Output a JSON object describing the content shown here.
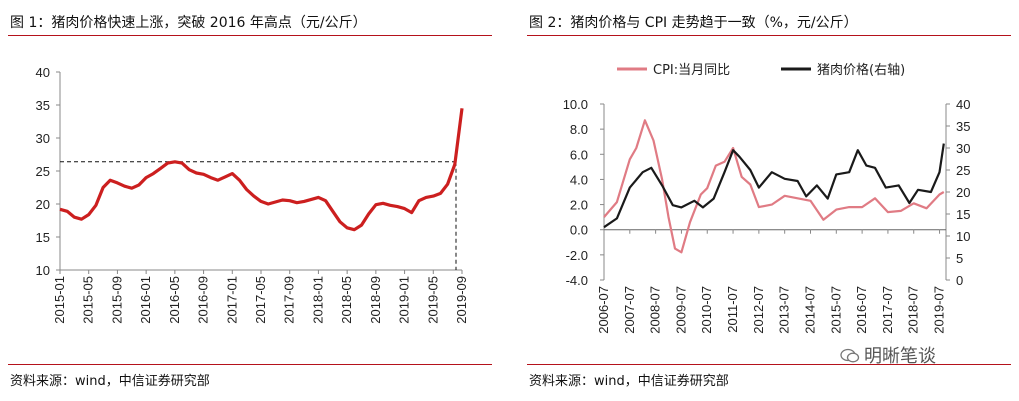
{
  "left": {
    "title": "图 1：猪肉价格快速上涨，突破 2016 年高点（元/公斤）",
    "source": "资料来源：wind，中信证券研究部"
  },
  "right": {
    "title": "图 2：猪肉价格与 CPI 走势趋于一致（%，元/公斤）",
    "source": "资料来源：wind，中信证券研究部"
  },
  "watermark": "明晰笔谈",
  "colors": {
    "rule": "#b5121b",
    "pork_red": "#cc1f1f",
    "cpi_pink": "#e07b84",
    "pork_black": "#1a1a1a"
  },
  "chart_data": [
    {
      "type": "line",
      "title": "图 1：猪肉价格快速上涨，突破 2016 年高点（元/公斤）",
      "ylim": [
        10,
        40
      ],
      "yticks": [
        "40",
        "35",
        "30",
        "25",
        "20",
        "15",
        "10"
      ],
      "xticks": [
        "2015-01",
        "2015-05",
        "2015-09",
        "2016-01",
        "2016-05",
        "2016-09",
        "2017-01",
        "2017-05",
        "2017-09",
        "2018-01",
        "2018-05",
        "2018-09",
        "2019-01",
        "2019-05",
        "2019-09"
      ],
      "reference_line": 26.4,
      "series": [
        {
          "values": [
            [
              "2015-01",
              19.2
            ],
            [
              "2015-02",
              18.9
            ],
            [
              "2015-03",
              18.0
            ],
            [
              "2015-04",
              17.7
            ],
            [
              "2015-05",
              18.4
            ],
            [
              "2015-06",
              19.8
            ],
            [
              "2015-07",
              22.5
            ],
            [
              "2015-08",
              23.6
            ],
            [
              "2015-09",
              23.2
            ],
            [
              "2015-10",
              22.7
            ],
            [
              "2015-11",
              22.4
            ],
            [
              "2015-12",
              22.9
            ],
            [
              "2016-01",
              24.0
            ],
            [
              "2016-02",
              24.6
            ],
            [
              "2016-03",
              25.4
            ],
            [
              "2016-04",
              26.2
            ],
            [
              "2016-05",
              26.4
            ],
            [
              "2016-06",
              26.2
            ],
            [
              "2016-07",
              25.2
            ],
            [
              "2016-08",
              24.7
            ],
            [
              "2016-09",
              24.5
            ],
            [
              "2016-10",
              24.0
            ],
            [
              "2016-11",
              23.6
            ],
            [
              "2016-12",
              24.1
            ],
            [
              "2017-01",
              24.6
            ],
            [
              "2017-02",
              23.6
            ],
            [
              "2017-03",
              22.2
            ],
            [
              "2017-04",
              21.2
            ],
            [
              "2017-05",
              20.4
            ],
            [
              "2017-06",
              20.0
            ],
            [
              "2017-07",
              20.3
            ],
            [
              "2017-08",
              20.6
            ],
            [
              "2017-09",
              20.5
            ],
            [
              "2017-10",
              20.2
            ],
            [
              "2017-11",
              20.4
            ],
            [
              "2017-12",
              20.7
            ],
            [
              "2018-01",
              21.0
            ],
            [
              "2018-02",
              20.5
            ],
            [
              "2018-03",
              18.9
            ],
            [
              "2018-04",
              17.3
            ],
            [
              "2018-05",
              16.4
            ],
            [
              "2018-06",
              16.1
            ],
            [
              "2018-07",
              16.8
            ],
            [
              "2018-08",
              18.5
            ],
            [
              "2018-09",
              19.9
            ],
            [
              "2018-10",
              20.1
            ],
            [
              "2018-11",
              19.8
            ],
            [
              "2018-12",
              19.6
            ],
            [
              "2019-01",
              19.3
            ],
            [
              "2019-02",
              18.7
            ],
            [
              "2019-03",
              20.5
            ],
            [
              "2019-04",
              21.0
            ],
            [
              "2019-05",
              21.2
            ],
            [
              "2019-06",
              21.6
            ],
            [
              "2019-07",
              23.0
            ],
            [
              "2019-08",
              26.0
            ],
            [
              "2019-09",
              34.5
            ]
          ]
        }
      ]
    },
    {
      "type": "line",
      "title": "图 2：猪肉价格与 CPI 走势趋于一致（%，元/公斤）",
      "ylim_left": [
        -4,
        10
      ],
      "ylim_right": [
        0,
        40
      ],
      "yticks_left": [
        "10.0",
        "8.0",
        "6.0",
        "4.0",
        "2.0",
        "0.0",
        "-2.0",
        "-4.0"
      ],
      "yticks_right": [
        "40",
        "35",
        "30",
        "25",
        "20",
        "15",
        "10",
        "5",
        "0"
      ],
      "xticks": [
        "2006-07",
        "2007-07",
        "2008-07",
        "2009-07",
        "2010-07",
        "2011-07",
        "2012-07",
        "2013-07",
        "2014-07",
        "2015-07",
        "2016-07",
        "2017-07",
        "2018-07",
        "2019-07"
      ],
      "legend_position": "top",
      "series": [
        {
          "name": "CPI:当月同比",
          "axis": "left",
          "values": [
            [
              "2006-07",
              1.0
            ],
            [
              "2007-01",
              2.2
            ],
            [
              "2007-07",
              5.6
            ],
            [
              "2007-10",
              6.5
            ],
            [
              "2008-02",
              8.7
            ],
            [
              "2008-06",
              7.1
            ],
            [
              "2008-10",
              4.0
            ],
            [
              "2009-01",
              1.0
            ],
            [
              "2009-04",
              -1.5
            ],
            [
              "2009-07",
              -1.8
            ],
            [
              "2009-11",
              0.6
            ],
            [
              "2010-04",
              2.8
            ],
            [
              "2010-07",
              3.3
            ],
            [
              "2010-11",
              5.1
            ],
            [
              "2011-03",
              5.4
            ],
            [
              "2011-07",
              6.5
            ],
            [
              "2011-11",
              4.2
            ],
            [
              "2012-03",
              3.6
            ],
            [
              "2012-07",
              1.8
            ],
            [
              "2013-01",
              2.0
            ],
            [
              "2013-07",
              2.7
            ],
            [
              "2014-01",
              2.5
            ],
            [
              "2014-07",
              2.3
            ],
            [
              "2015-01",
              0.8
            ],
            [
              "2015-07",
              1.6
            ],
            [
              "2016-01",
              1.8
            ],
            [
              "2016-07",
              1.8
            ],
            [
              "2017-01",
              2.5
            ],
            [
              "2017-07",
              1.4
            ],
            [
              "2018-01",
              1.5
            ],
            [
              "2018-07",
              2.1
            ],
            [
              "2019-01",
              1.7
            ],
            [
              "2019-07",
              2.8
            ],
            [
              "2019-09",
              3.0
            ]
          ]
        },
        {
          "name": "猪肉价格(右轴)",
          "axis": "right",
          "values": [
            [
              "2006-07",
              12.0
            ],
            [
              "2007-01",
              14.0
            ],
            [
              "2007-07",
              21.0
            ],
            [
              "2008-01",
              24.5
            ],
            [
              "2008-05",
              25.5
            ],
            [
              "2008-10",
              21.5
            ],
            [
              "2009-03",
              17.0
            ],
            [
              "2009-07",
              16.5
            ],
            [
              "2010-01",
              18.0
            ],
            [
              "2010-05",
              16.5
            ],
            [
              "2010-10",
              18.5
            ],
            [
              "2011-03",
              24.5
            ],
            [
              "2011-07",
              29.5
            ],
            [
              "2011-10",
              28.0
            ],
            [
              "2012-03",
              25.0
            ],
            [
              "2012-07",
              21.0
            ],
            [
              "2013-01",
              24.5
            ],
            [
              "2013-07",
              23.0
            ],
            [
              "2014-01",
              22.5
            ],
            [
              "2014-05",
              19.0
            ],
            [
              "2014-10",
              21.5
            ],
            [
              "2015-03",
              18.5
            ],
            [
              "2015-07",
              24.0
            ],
            [
              "2016-01",
              24.5
            ],
            [
              "2016-05",
              29.5
            ],
            [
              "2016-09",
              26.0
            ],
            [
              "2017-01",
              25.5
            ],
            [
              "2017-06",
              21.0
            ],
            [
              "2017-12",
              21.5
            ],
            [
              "2018-05",
              17.5
            ],
            [
              "2018-09",
              20.5
            ],
            [
              "2019-03",
              20.0
            ],
            [
              "2019-07",
              24.5
            ],
            [
              "2019-09",
              31.0
            ]
          ]
        }
      ]
    }
  ]
}
